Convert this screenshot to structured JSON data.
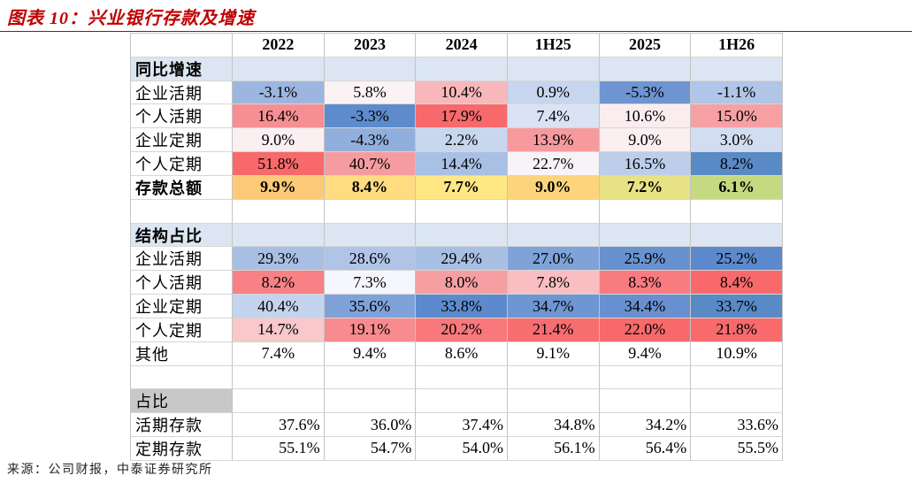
{
  "accent_color": "#C00000",
  "chart_data": {
    "type": "table",
    "title": "图表 10：兴业银行存款及增速",
    "columns": [
      "2022",
      "2023",
      "2024",
      "1H25",
      "2025",
      "1H26"
    ],
    "sections": [
      {
        "name": "同比增速",
        "rows": [
          {
            "label": "企业活期",
            "values": [
              "-3.1%",
              "5.8%",
              "10.4%",
              "0.9%",
              "-5.3%",
              "-1.1%"
            ],
            "colors": [
              "#9CB6DF",
              "#FBF2F4",
              "#F8B8BB",
              "#C7D6EE",
              "#6E95D1",
              "#B1C5E8"
            ]
          },
          {
            "label": "个人活期",
            "values": [
              "16.4%",
              "-3.3%",
              "17.9%",
              "7.4%",
              "10.6%",
              "15.0%"
            ],
            "colors": [
              "#F68F93",
              "#5E8BCB",
              "#F8696B",
              "#DAE3F4",
              "#FBEDEF",
              "#F7A0A4"
            ]
          },
          {
            "label": "企业定期",
            "values": [
              "9.0%",
              "-4.3%",
              "2.2%",
              "13.9%",
              "9.0%",
              "3.0%"
            ],
            "colors": [
              "#FBEFF1",
              "#91AFDC",
              "#C8D6EE",
              "#F79A9E",
              "#FBEFF1",
              "#D2DDF1"
            ]
          },
          {
            "label": "个人定期",
            "values": [
              "51.8%",
              "40.7%",
              "14.4%",
              "22.7%",
              "16.5%",
              "8.2%"
            ],
            "colors": [
              "#F8696B",
              "#F69CA0",
              "#A9C0E5",
              "#F8F3F7",
              "#BDCEEB",
              "#5A8AC6"
            ]
          },
          {
            "label": "存款总额",
            "values": [
              "9.9%",
              "8.4%",
              "7.7%",
              "9.0%",
              "7.2%",
              "6.1%"
            ],
            "colors": [
              "#FCCA76",
              "#FEDC7F",
              "#FFE784",
              "#FDD47B",
              "#E7E283",
              "#C4D980"
            ]
          }
        ]
      },
      {
        "name": "结构占比",
        "rows": [
          {
            "label": "企业活期",
            "values": [
              "29.3%",
              "28.6%",
              "29.4%",
              "27.0%",
              "25.9%",
              "25.2%"
            ],
            "colors": [
              "#A8BFE4",
              "#B0C4E7",
              "#A8BFE4",
              "#7FA2D8",
              "#6791CF",
              "#5C89CB"
            ]
          },
          {
            "label": "个人活期",
            "values": [
              "8.2%",
              "7.3%",
              "8.0%",
              "7.8%",
              "8.3%",
              "8.4%"
            ],
            "colors": [
              "#F88185",
              "#F5F6FC",
              "#F69FA2",
              "#F8BEC1",
              "#F87B7F",
              "#F8696B"
            ]
          },
          {
            "label": "企业定期",
            "values": [
              "40.4%",
              "35.6%",
              "33.8%",
              "34.7%",
              "34.4%",
              "33.7%"
            ],
            "colors": [
              "#C5D4EE",
              "#7FA2D8",
              "#5D8ACC",
              "#6E96D2",
              "#6890D0",
              "#5A8AC6"
            ]
          },
          {
            "label": "个人定期",
            "values": [
              "14.7%",
              "19.1%",
              "20.2%",
              "21.4%",
              "22.0%",
              "21.8%"
            ],
            "colors": [
              "#F8C8CB",
              "#F78B8F",
              "#F8787B",
              "#F86D70",
              "#F8696B",
              "#F86A6C"
            ]
          },
          {
            "label": "其他",
            "values": [
              "7.4%",
              "9.4%",
              "8.6%",
              "9.1%",
              "9.4%",
              "10.9%"
            ]
          }
        ]
      },
      {
        "name": "占比",
        "rows": [
          {
            "label": "活期存款",
            "values": [
              "37.6%",
              "36.0%",
              "37.4%",
              "34.8%",
              "34.2%",
              "33.6%"
            ]
          },
          {
            "label": "定期存款",
            "values": [
              "55.1%",
              "54.7%",
              "54.0%",
              "56.1%",
              "56.4%",
              "55.5%"
            ]
          }
        ]
      }
    ],
    "source": "来源：公司财报，中泰证券研究所"
  }
}
